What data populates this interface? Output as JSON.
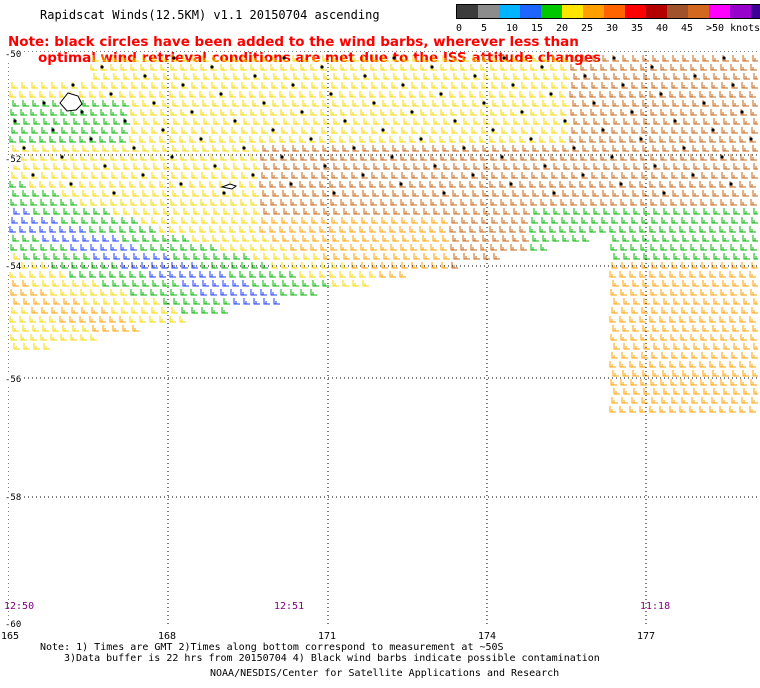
{
  "title": "Rapidscat Winds(12.5KM) v1.1 20150704 ascending",
  "note": {
    "line1": "Note: black circles have been added to the wind barbs, wherever less than",
    "line2": "optimal wind retrieval conditions are met due to the ISS attitude changes"
  },
  "legend": {
    "labels": [
      "0",
      "5",
      "10",
      "15",
      "20",
      "25",
      "30",
      "35",
      "40",
      "45",
      ">50 knots"
    ],
    "colors": [
      "#3c3c3c",
      "#8c8c8c",
      "#00b4ff",
      "#1e64ff",
      "#00c800",
      "#ffe600",
      "#ffa000",
      "#ff6400",
      "#ff0000",
      "#b40000",
      "#a0522d",
      "#d2691e",
      "#ff00ff",
      "#9900cc",
      "#3c0096"
    ]
  },
  "axes": {
    "lat_labels": [
      "-50",
      "-52",
      "-54",
      "-56",
      "-58",
      "-60"
    ],
    "lon_labels": [
      "165",
      "168",
      "171",
      "174",
      "177"
    ]
  },
  "times": [
    "12:50",
    "12:51",
    "11:18"
  ],
  "footer": {
    "line1": "Note: 1) Times are GMT 2)Times along bottom correspond to measurement at ~50S",
    "line2": "3)Data buffer is 22 hrs from 20150704 4) Black wind barbs indicate possible contamination",
    "credit": "NOAA/NESDIS/Center for Satellite Applications and Research"
  }
}
